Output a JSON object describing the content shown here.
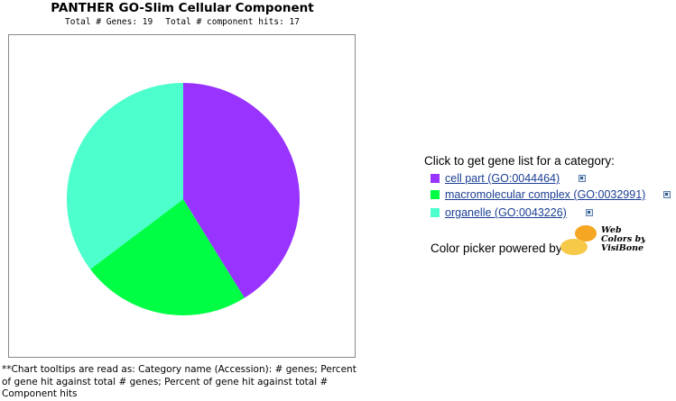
{
  "header": {
    "title": "PANTHER GO-Slim Cellular Component",
    "genes_text": "Total # Genes: 19",
    "hits_text": "Total # component hits: 17"
  },
  "chart_data": {
    "type": "pie",
    "title": "PANTHER GO-Slim Cellular Component",
    "labels": [
      "cell part (GO:0044464)",
      "macromolecular complex (GO:0032991)",
      "organelle (GO:0043226)"
    ],
    "values": [
      7,
      4,
      6
    ],
    "colors": [
      "#9933ff",
      "#00ff44",
      "#4dffcc"
    ],
    "start_angle_deg": 0,
    "direction": "clockwise"
  },
  "legend": {
    "heading": "Click to get gene list for a category:",
    "items": [
      {
        "label": "cell part (GO:0044464)",
        "color": "#9933ff",
        "icon": "external-link-icon"
      },
      {
        "label": "macromolecular complex (GO:0032991)",
        "color": "#00ff44",
        "icon": "external-link-icon"
      },
      {
        "label": "organelle (GO:0043226)",
        "color": "#4dffcc",
        "icon": "external-link-icon"
      }
    ]
  },
  "color_picker": {
    "text": "Color picker powered by",
    "logo_line1": "Web",
    "logo_line2": "Colors by",
    "logo_line3": "VisiBone"
  },
  "footnote": {
    "text": "**Chart tooltips are read as: Category name (Accession): # genes; Percent of gene hit against total # genes; Percent of gene hit against total # Component hits"
  }
}
